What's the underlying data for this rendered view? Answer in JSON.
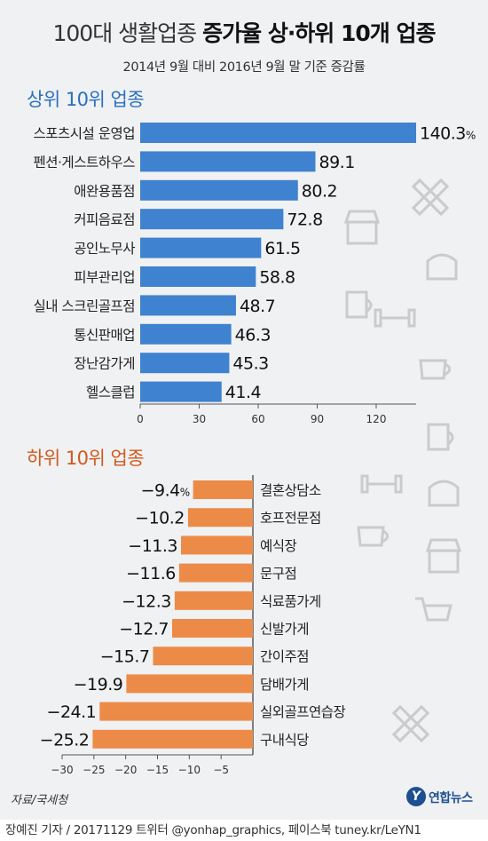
{
  "header": {
    "title_light": "100대 생활업종",
    "title_bold": "증가율 상·하위 10개 업종",
    "subtitle": "2014년 9월 대비 2016년 9월 말 기준 증감률"
  },
  "footer": {
    "source": "자료/국세청",
    "credit": "장예진 기자 / 20171129 트위터 @yonhap_graphics, 페이스북 tuney.kr/LeYN1",
    "logo_mark": "Y",
    "logo_name": "연합뉴스"
  },
  "colors": {
    "top_bar": "#3f82cf",
    "bottom_bar": "#ec8b48",
    "top_title": "#2a6fbf",
    "bottom_title": "#cf5a1e",
    "background": "#f0f1f2"
  },
  "chart_data": [
    {
      "type": "bar",
      "orientation": "horizontal",
      "title": "상위 10위 업종",
      "categories": [
        "스포츠시설 운영업",
        "펜션·게스트하우스",
        "애완용품점",
        "커피음료점",
        "공인노무사",
        "피부관리업",
        "실내 스크린골프점",
        "통신판매업",
        "장난감가게",
        "헬스클럽"
      ],
      "values": [
        140.3,
        89.1,
        80.2,
        72.8,
        61.5,
        58.8,
        48.7,
        46.3,
        45.3,
        41.4
      ],
      "value_labels": [
        "140.3",
        "89.1",
        "80.2",
        "72.8",
        "61.5",
        "58.8",
        "48.7",
        "46.3",
        "45.3",
        "41.4"
      ],
      "unit": "%",
      "xlim": [
        0,
        140.3
      ],
      "ticks": [
        0,
        30,
        60,
        90,
        120
      ],
      "grid": false
    },
    {
      "type": "bar",
      "orientation": "horizontal",
      "title": "하위 10위 업종",
      "categories": [
        "결혼상담소",
        "호프전문점",
        "예식장",
        "문구점",
        "식료품가게",
        "신발가게",
        "간이주점",
        "담배가게",
        "실외골프연습장",
        "구내식당"
      ],
      "values": [
        -9.4,
        -10.2,
        -11.3,
        -11.6,
        -12.3,
        -12.7,
        -15.7,
        -19.9,
        -24.1,
        -25.2
      ],
      "value_labels": [
        "−9.4",
        "−10.2",
        "−11.3",
        "−11.6",
        "−12.3",
        "−12.7",
        "−15.7",
        "−19.9",
        "−24.1",
        "−25.2"
      ],
      "unit": "%",
      "xlim": [
        -30,
        0
      ],
      "ticks": [
        -30,
        -25,
        -20,
        -15,
        -10,
        -5
      ],
      "tick_labels": [
        "−30",
        "−25",
        "−20",
        "−15",
        "−10",
        "−5"
      ],
      "grid": false
    }
  ]
}
